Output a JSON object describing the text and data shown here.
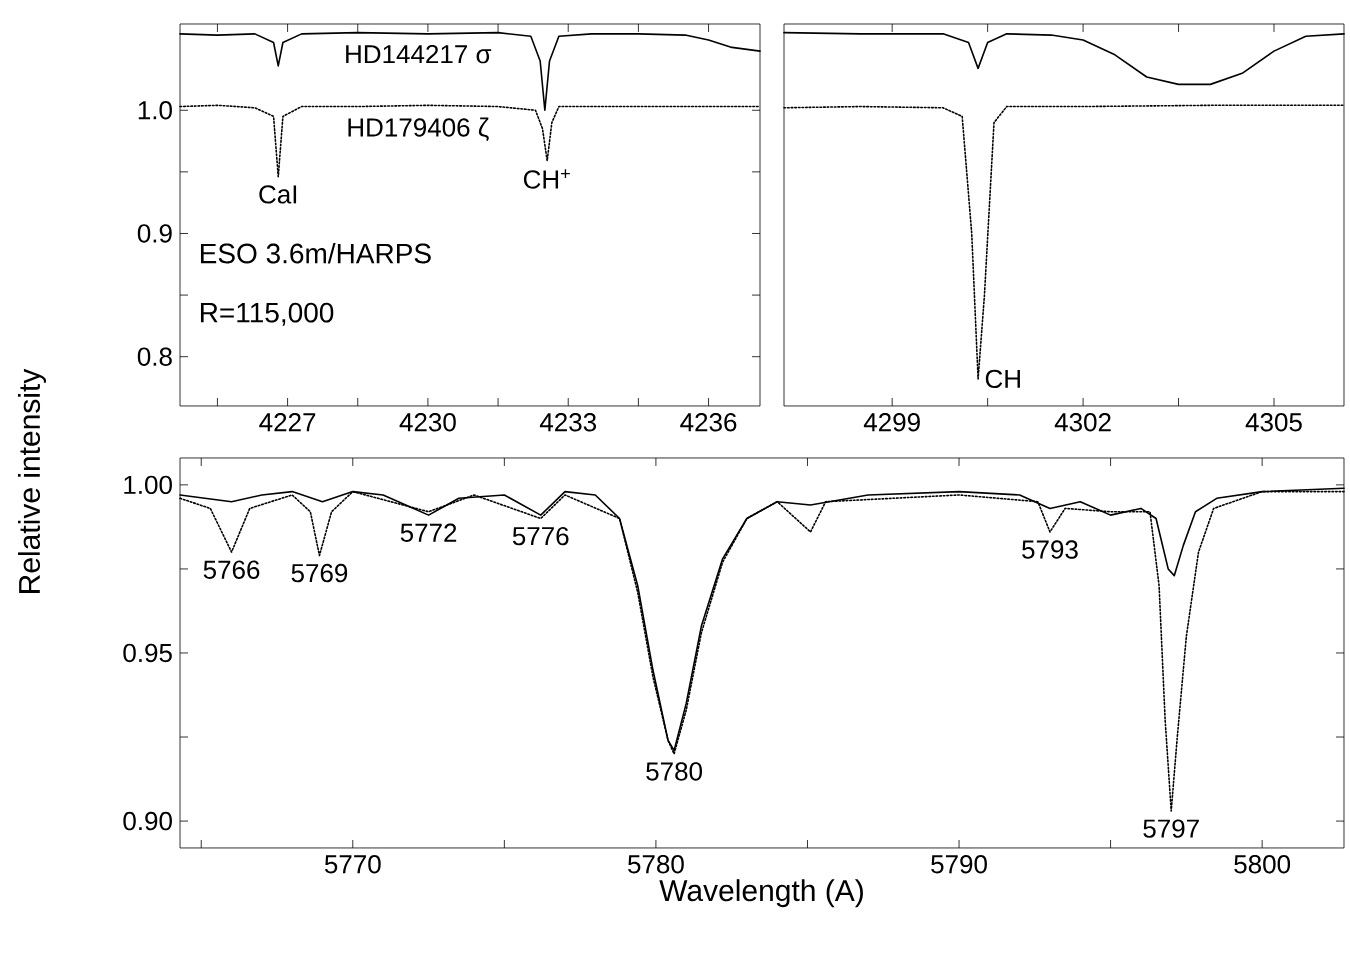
{
  "chart_data": [
    {
      "type": "line",
      "xlim": [
        4224.7,
        4237.1
      ],
      "ylim": [
        0.76,
        1.07
      ],
      "xticks": [
        {
          "value": 4225.5,
          "label": null
        },
        4227,
        {
          "value": 4228.5,
          "label": null
        },
        4230,
        {
          "value": 4231.5,
          "label": null
        },
        4233,
        {
          "value": 4234.5,
          "label": null
        },
        4236
      ],
      "yticks": [
        0.8,
        {
          "value": 0.85,
          "label": null
        },
        0.9,
        {
          "value": 0.95,
          "label": null
        },
        {
          "value": 1.0,
          "label": "1.0"
        }
      ],
      "series": [
        {
          "name": "HD144217 σ",
          "color": "#000000",
          "line_style": "solid",
          "x": [
            4224.7,
            4225.5,
            4226.3,
            4226.7,
            4226.8,
            4226.9,
            4227.3,
            4228.5,
            4230,
            4231.5,
            4232.2,
            4232.4,
            4232.5,
            4232.6,
            4232.8,
            4233.5,
            4234.5,
            4235.5,
            4236.0,
            4236.5,
            4237.1
          ],
          "values": [
            1.062,
            1.061,
            1.062,
            1.055,
            1.036,
            1.055,
            1.062,
            1.063,
            1.062,
            1.063,
            1.06,
            1.04,
            1.0,
            1.04,
            1.06,
            1.062,
            1.062,
            1.061,
            1.057,
            1.051,
            1.048
          ]
        },
        {
          "name": "HD179406 ζ",
          "color": "#000000",
          "line_style": "dotted",
          "x": [
            4224.7,
            4225.5,
            4226.3,
            4226.7,
            4226.8,
            4226.9,
            4227.3,
            4228.5,
            4230,
            4231.5,
            4232.3,
            4232.45,
            4232.55,
            4232.65,
            4232.8,
            4233.5,
            4235,
            4237.1
          ],
          "values": [
            1.003,
            1.004,
            1.002,
            0.995,
            0.946,
            0.995,
            1.003,
            1.003,
            1.004,
            1.003,
            1.0,
            0.985,
            0.959,
            0.99,
            1.003,
            1.003,
            1.003,
            1.003
          ]
        }
      ],
      "annotations": [
        {
          "text": "CaI",
          "x": 4226.8,
          "y": 0.946
        },
        {
          "text": "CH$^{+}$",
          "x": 4232.55,
          "y": 0.959
        },
        "ESO 3.6m/HARPS",
        "R=115,000"
      ]
    },
    {
      "type": "line",
      "xlim": [
        4297.3,
        4306.1
      ],
      "ylim": [
        0.76,
        1.07
      ],
      "tick_labels": "x",
      "xticks": [
        4299,
        {
          "value": 4300.5,
          "label": null
        },
        4302,
        {
          "value": 4303.5,
          "label": null
        },
        4305
      ],
      "yticks": [
        0.8,
        {
          "value": 0.85,
          "label": null
        },
        0.9,
        {
          "value": 0.95,
          "label": null
        },
        1.0
      ],
      "series": [
        {
          "color": "#000000",
          "line_style": "solid",
          "x": [
            4297.3,
            4298.5,
            4299.8,
            4300.2,
            4300.35,
            4300.5,
            4300.8,
            4301.5,
            4302.0,
            4302.5,
            4303.0,
            4303.5,
            4304.0,
            4304.5,
            4305.0,
            4305.5,
            4306.1
          ],
          "values": [
            1.063,
            1.062,
            1.062,
            1.055,
            1.034,
            1.055,
            1.062,
            1.061,
            1.057,
            1.045,
            1.027,
            1.021,
            1.021,
            1.03,
            1.048,
            1.06,
            1.062
          ]
        },
        {
          "color": "#000000",
          "line_style": "dotted",
          "x": [
            4297.3,
            4298.5,
            4299.8,
            4300.1,
            4300.25,
            4300.35,
            4300.45,
            4300.6,
            4300.8,
            4302,
            4304,
            4306.1
          ],
          "values": [
            1.002,
            1.003,
            1.002,
            0.995,
            0.9,
            0.782,
            0.85,
            0.99,
            1.003,
            1.003,
            1.004,
            1.004
          ]
        }
      ],
      "annotations": [
        {
          "text": "CH",
          "x": 4300.35,
          "y": 0.782
        }
      ]
    },
    {
      "type": "line",
      "xlim": [
        5764.3,
        5802.7
      ],
      "ylim": [
        0.892,
        1.008
      ],
      "xlabel": "Wavelength (A)",
      "ylabel": "Relative intensity",
      "xticks": [
        {
          "value": 5765,
          "label": null
        },
        5770,
        {
          "value": 5775,
          "label": null
        },
        5780,
        {
          "value": 5785,
          "label": null
        },
        5790,
        {
          "value": 5795,
          "label": null
        },
        5800
      ],
      "yticks": [
        {
          "value": 0.9,
          "label": "0.90"
        },
        {
          "value": 0.925,
          "label": null
        },
        0.95,
        {
          "value": 0.975,
          "label": null
        },
        {
          "value": 1.0,
          "label": "1.00"
        }
      ],
      "series": [
        {
          "color": "#000000",
          "line_style": "solid",
          "x": [
            5764.3,
            5766,
            5767,
            5768,
            5769,
            5770,
            5771,
            5772.5,
            5773.5,
            5775,
            5776.2,
            5777,
            5778,
            5778.8,
            5779.4,
            5779.9,
            5780.4,
            5780.6,
            5781.0,
            5781.5,
            5782.2,
            5783,
            5784,
            5785.1,
            5787,
            5790,
            5792,
            5793,
            5794,
            5795,
            5796,
            5796.5,
            5796.9,
            5797.1,
            5797.4,
            5797.8,
            5798.5,
            5800,
            5802.7
          ],
          "values": [
            0.997,
            0.995,
            0.997,
            0.998,
            0.995,
            0.998,
            0.997,
            0.991,
            0.996,
            0.997,
            0.991,
            0.998,
            0.997,
            0.99,
            0.97,
            0.945,
            0.924,
            0.921,
            0.935,
            0.958,
            0.978,
            0.99,
            0.995,
            0.994,
            0.997,
            0.998,
            0.997,
            0.993,
            0.995,
            0.991,
            0.993,
            0.99,
            0.975,
            0.973,
            0.982,
            0.992,
            0.996,
            0.998,
            0.999
          ]
        },
        {
          "color": "#000000",
          "line_style": "dotted",
          "x": [
            5764.3,
            5765.3,
            5766.0,
            5766.6,
            5768,
            5768.6,
            5768.9,
            5769.3,
            5770,
            5772.5,
            5774,
            5776.2,
            5777,
            5778.8,
            5779.4,
            5779.9,
            5780.4,
            5780.6,
            5781.0,
            5781.5,
            5782.2,
            5783,
            5784,
            5785.1,
            5785.6,
            5790,
            5792.6,
            5793.0,
            5793.5,
            5795,
            5796.3,
            5796.6,
            5796.8,
            5797.0,
            5797.2,
            5797.5,
            5797.9,
            5798.4,
            5800,
            5802.7
          ],
          "values": [
            0.996,
            0.993,
            0.98,
            0.993,
            0.997,
            0.992,
            0.979,
            0.992,
            0.998,
            0.992,
            0.997,
            0.99,
            0.997,
            0.99,
            0.968,
            0.943,
            0.924,
            0.92,
            0.933,
            0.956,
            0.977,
            0.99,
            0.995,
            0.986,
            0.995,
            0.997,
            0.995,
            0.986,
            0.993,
            0.992,
            0.992,
            0.97,
            0.93,
            0.903,
            0.925,
            0.955,
            0.98,
            0.993,
            0.998,
            0.998
          ]
        }
      ],
      "annotations": [
        {
          "text": "5766",
          "x": 5766.0,
          "y": 0.98
        },
        {
          "text": "5769",
          "x": 5768.9,
          "y": 0.979
        },
        {
          "text": "5772",
          "x": 5772.5,
          "y": 0.991
        },
        {
          "text": "5776",
          "x": 5776.2,
          "y": 0.99
        },
        {
          "text": "5780",
          "x": 5780.6,
          "y": 0.92
        },
        {
          "text": "5793",
          "x": 5793.0,
          "y": 0.986
        },
        {
          "text": "5797",
          "x": 5797.0,
          "y": 0.903
        }
      ]
    }
  ]
}
